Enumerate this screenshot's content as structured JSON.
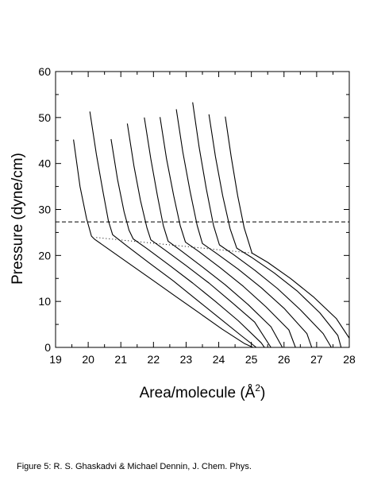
{
  "caption": "Figure 5: R. S. Ghaskadvi & Michael Dennin, J. Chem. Phys.",
  "chart_data": {
    "type": "line",
    "title": "",
    "xlabel": "Area/molecule (Å",
    "xlabel_superscript": "2",
    "xlabel_close": ")",
    "ylabel": "Pressure (dyne/cm)",
    "xlim": [
      19,
      28
    ],
    "ylim": [
      0,
      60
    ],
    "xticks": [
      19,
      20,
      21,
      22,
      23,
      24,
      25,
      26,
      27,
      28
    ],
    "yticks": [
      0,
      10,
      20,
      30,
      40,
      50,
      60
    ],
    "grid": false,
    "series_color": "#000000",
    "series": [
      {
        "x": [
          19.55,
          19.75,
          19.95,
          20.1,
          20.2,
          20.6,
          21.3,
          22.0,
          22.7,
          23.4,
          24.1,
          24.8,
          25.05
        ],
        "y": [
          45.2,
          35,
          28,
          24.2,
          23.5,
          21.5,
          18,
          14.5,
          11,
          7.5,
          4,
          0.8,
          0
        ]
      },
      {
        "x": [
          20.05,
          20.25,
          20.45,
          20.62,
          20.75,
          21.2,
          21.9,
          22.6,
          23.3,
          24.0,
          24.7,
          25.15
        ],
        "y": [
          51.3,
          42,
          34,
          27.5,
          24.5,
          22,
          18.2,
          14.5,
          10.5,
          6.5,
          2.5,
          0
        ]
      },
      {
        "x": [
          20.7,
          20.9,
          21.1,
          21.25,
          21.38,
          21.8,
          22.5,
          23.2,
          23.9,
          24.6,
          25.3,
          25.4
        ],
        "y": [
          45.3,
          36.5,
          29.5,
          25.5,
          23.6,
          21.5,
          17.8,
          14,
          10,
          5.8,
          1,
          0
        ]
      },
      {
        "x": [
          21.2,
          21.4,
          21.6,
          21.8,
          21.92,
          22.35,
          23.0,
          23.7,
          24.4,
          25.1,
          25.6
        ],
        "y": [
          48.7,
          39.5,
          32,
          26,
          23.4,
          21.2,
          17.8,
          14,
          9.8,
          5.5,
          0
        ]
      },
      {
        "x": [
          21.72,
          21.92,
          22.12,
          22.3,
          22.45,
          22.85,
          23.5,
          24.2,
          24.9,
          25.6,
          25.95
        ],
        "y": [
          50,
          41,
          33,
          26.5,
          23.1,
          21,
          17.5,
          13.6,
          9.3,
          4.5,
          0
        ]
      },
      {
        "x": [
          22.2,
          22.4,
          22.62,
          22.82,
          22.98,
          23.4,
          24.05,
          24.75,
          25.45,
          26.15,
          26.35
        ],
        "y": [
          50.1,
          41,
          33,
          26.5,
          22.9,
          20.8,
          17.3,
          13.3,
          8.8,
          3.8,
          0
        ]
      },
      {
        "x": [
          22.7,
          22.9,
          23.12,
          23.34,
          23.5,
          23.92,
          24.6,
          25.3,
          26.0,
          26.7,
          26.85
        ],
        "y": [
          51.8,
          42.5,
          34,
          26.5,
          22.6,
          20.5,
          17,
          13,
          8.5,
          3,
          0
        ]
      },
      {
        "x": [
          23.2,
          23.4,
          23.62,
          23.84,
          24.02,
          24.45,
          25.1,
          25.8,
          26.5,
          27.2,
          27.45
        ],
        "y": [
          53.3,
          43.5,
          34.5,
          26.5,
          22.3,
          20.2,
          16.8,
          12.8,
          8.2,
          3,
          0
        ]
      },
      {
        "x": [
          23.7,
          23.9,
          24.12,
          24.35,
          24.55,
          25.0,
          25.7,
          26.4,
          27.1,
          27.65,
          27.75
        ],
        "y": [
          50.7,
          41.5,
          33,
          25.8,
          21.6,
          19.6,
          16.2,
          12.3,
          7.5,
          2.6,
          0
        ]
      },
      {
        "x": [
          24.2,
          24.38,
          24.58,
          24.78,
          25.02,
          25.5,
          26.2,
          26.9,
          27.6,
          28.0
        ],
        "y": [
          50.2,
          41.5,
          33,
          26,
          20.5,
          18.5,
          15,
          11,
          6.3,
          2
        ]
      }
    ],
    "reference_lines": [
      {
        "style": "dashed",
        "x": [
          19,
          28
        ],
        "y": [
          27.3,
          27.3
        ]
      },
      {
        "style": "dotted",
        "x": [
          20.25,
          25.05
        ],
        "y": [
          23.9,
          20.5
        ]
      }
    ]
  }
}
